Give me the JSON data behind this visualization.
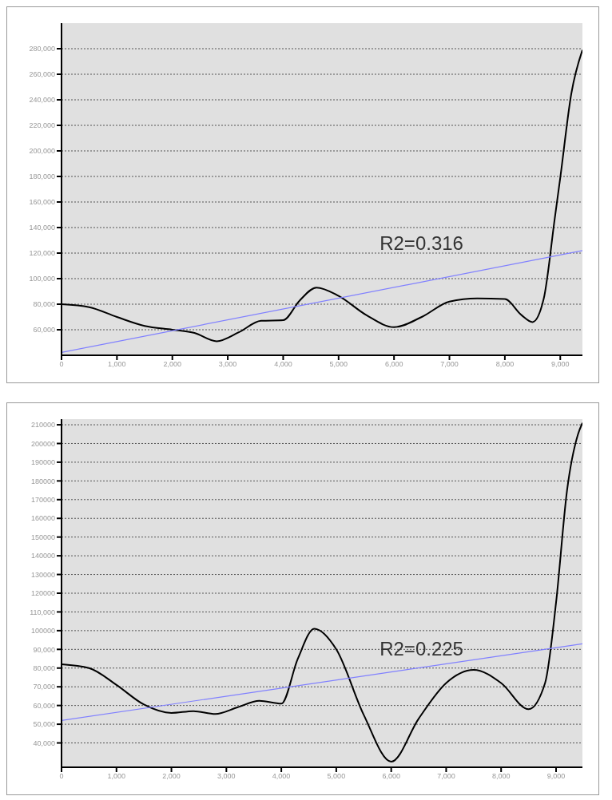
{
  "chart_data": [
    {
      "type": "line",
      "annotations": [
        "R2=0.316"
      ],
      "grid": "y",
      "marker": "none",
      "line_style": "solid",
      "xlim": [
        0,
        9400
      ],
      "ylim": [
        40000,
        300000
      ],
      "xticks": [
        {
          "value": 0,
          "label": "0"
        },
        {
          "value": 1000,
          "label": "1,000"
        },
        {
          "value": 2000,
          "label": "2,000"
        },
        {
          "value": 3000,
          "label": "3,000"
        },
        {
          "value": 4000,
          "label": "4,000"
        },
        {
          "value": 5000,
          "label": "5,000"
        },
        {
          "value": 6000,
          "label": "6,000"
        },
        {
          "value": 7000,
          "label": "7,000"
        },
        {
          "value": 8000,
          "label": "8,000"
        },
        {
          "value": 9000,
          "label": "9,000"
        }
      ],
      "yticks": [
        {
          "value": 60000,
          "label": "60,000"
        },
        {
          "value": 80000,
          "label": "80,000"
        },
        {
          "value": 100000,
          "label": "100,000"
        },
        {
          "value": 120000,
          "label": "120,000"
        },
        {
          "value": 140000,
          "label": "140,000"
        },
        {
          "value": 160000,
          "label": "160,000"
        },
        {
          "value": 180000,
          "label": "180,000"
        },
        {
          "value": 200000,
          "label": "200,000"
        },
        {
          "value": 220000,
          "label": "220,000"
        },
        {
          "value": 240000,
          "label": "240,000"
        },
        {
          "value": 260000,
          "label": "260,000"
        },
        {
          "value": 280000,
          "label": "280,000"
        }
      ],
      "series": [
        {
          "color": "#000000",
          "x": [
            0,
            500,
            1000,
            1500,
            2000,
            2400,
            2800,
            3200,
            3600,
            4000,
            4300,
            4600,
            5000,
            5500,
            6000,
            6500,
            7000,
            7500,
            8000,
            8300,
            8500,
            8700,
            8900,
            9000,
            9200,
            9400
          ],
          "values": [
            80000,
            77700,
            70000,
            63000,
            60000,
            57500,
            51000,
            58000,
            67000,
            67500,
            83000,
            93000,
            86500,
            71500,
            62000,
            70000,
            82000,
            84500,
            84000,
            71500,
            66000,
            84000,
            147000,
            179000,
            245000,
            279000
          ]
        },
        {
          "color": "#8080ff",
          "x": [
            0,
            9400
          ],
          "values": [
            42300,
            122000
          ]
        }
      ]
    },
    {
      "type": "line",
      "annotations": [
        "R2=0.225"
      ],
      "grid": "y",
      "marker": "none",
      "line_style": "solid",
      "xlim": [
        0,
        9480
      ],
      "ylim": [
        27000,
        213000
      ],
      "xticks": [
        {
          "value": 0,
          "label": "0"
        },
        {
          "value": 1000,
          "label": "1,000"
        },
        {
          "value": 2000,
          "label": "2,000"
        },
        {
          "value": 3000,
          "label": "3,000"
        },
        {
          "value": 4000,
          "label": "4,000"
        },
        {
          "value": 5000,
          "label": "5,000"
        },
        {
          "value": 6000,
          "label": "6,000"
        },
        {
          "value": 7000,
          "label": "7,000"
        },
        {
          "value": 8000,
          "label": "8,000"
        },
        {
          "value": 9000,
          "label": "9,000"
        }
      ],
      "yticks": [
        {
          "value": 40000,
          "label": "40,000"
        },
        {
          "value": 50000,
          "label": "50,000"
        },
        {
          "value": 60000,
          "label": "60,000"
        },
        {
          "value": 70000,
          "label": "70,000"
        },
        {
          "value": 80000,
          "label": "80,000"
        },
        {
          "value": 90000,
          "label": "90,000"
        },
        {
          "value": 100000,
          "label": "100000"
        },
        {
          "value": 110000,
          "label": "110,000"
        },
        {
          "value": 120000,
          "label": "120000"
        },
        {
          "value": 130000,
          "label": "130000"
        },
        {
          "value": 140000,
          "label": "140000"
        },
        {
          "value": 150000,
          "label": "150000"
        },
        {
          "value": 160000,
          "label": "160000"
        },
        {
          "value": 170000,
          "label": "170000"
        },
        {
          "value": 180000,
          "label": "180000"
        },
        {
          "value": 190000,
          "label": "190000"
        },
        {
          "value": 200000,
          "label": "200000"
        },
        {
          "value": 210000,
          "label": "210000"
        }
      ],
      "series": [
        {
          "color": "#000000",
          "x": [
            0,
            500,
            1000,
            1500,
            2000,
            2400,
            2800,
            3200,
            3600,
            4000,
            4300,
            4600,
            5000,
            5500,
            6000,
            6500,
            7000,
            7500,
            8000,
            8500,
            8800,
            9000,
            9200,
            9400,
            9480
          ],
          "values": [
            82000,
            80000,
            71000,
            60500,
            56000,
            57000,
            55500,
            59000,
            62500,
            61000,
            85000,
            101000,
            90000,
            55000,
            30000,
            53000,
            72000,
            79000,
            72000,
            58000,
            72000,
            115000,
            175000,
            205000,
            211000
          ]
        },
        {
          "color": "#8080ff",
          "x": [
            0,
            9480
          ],
          "values": [
            52000,
            93000
          ]
        }
      ]
    }
  ]
}
